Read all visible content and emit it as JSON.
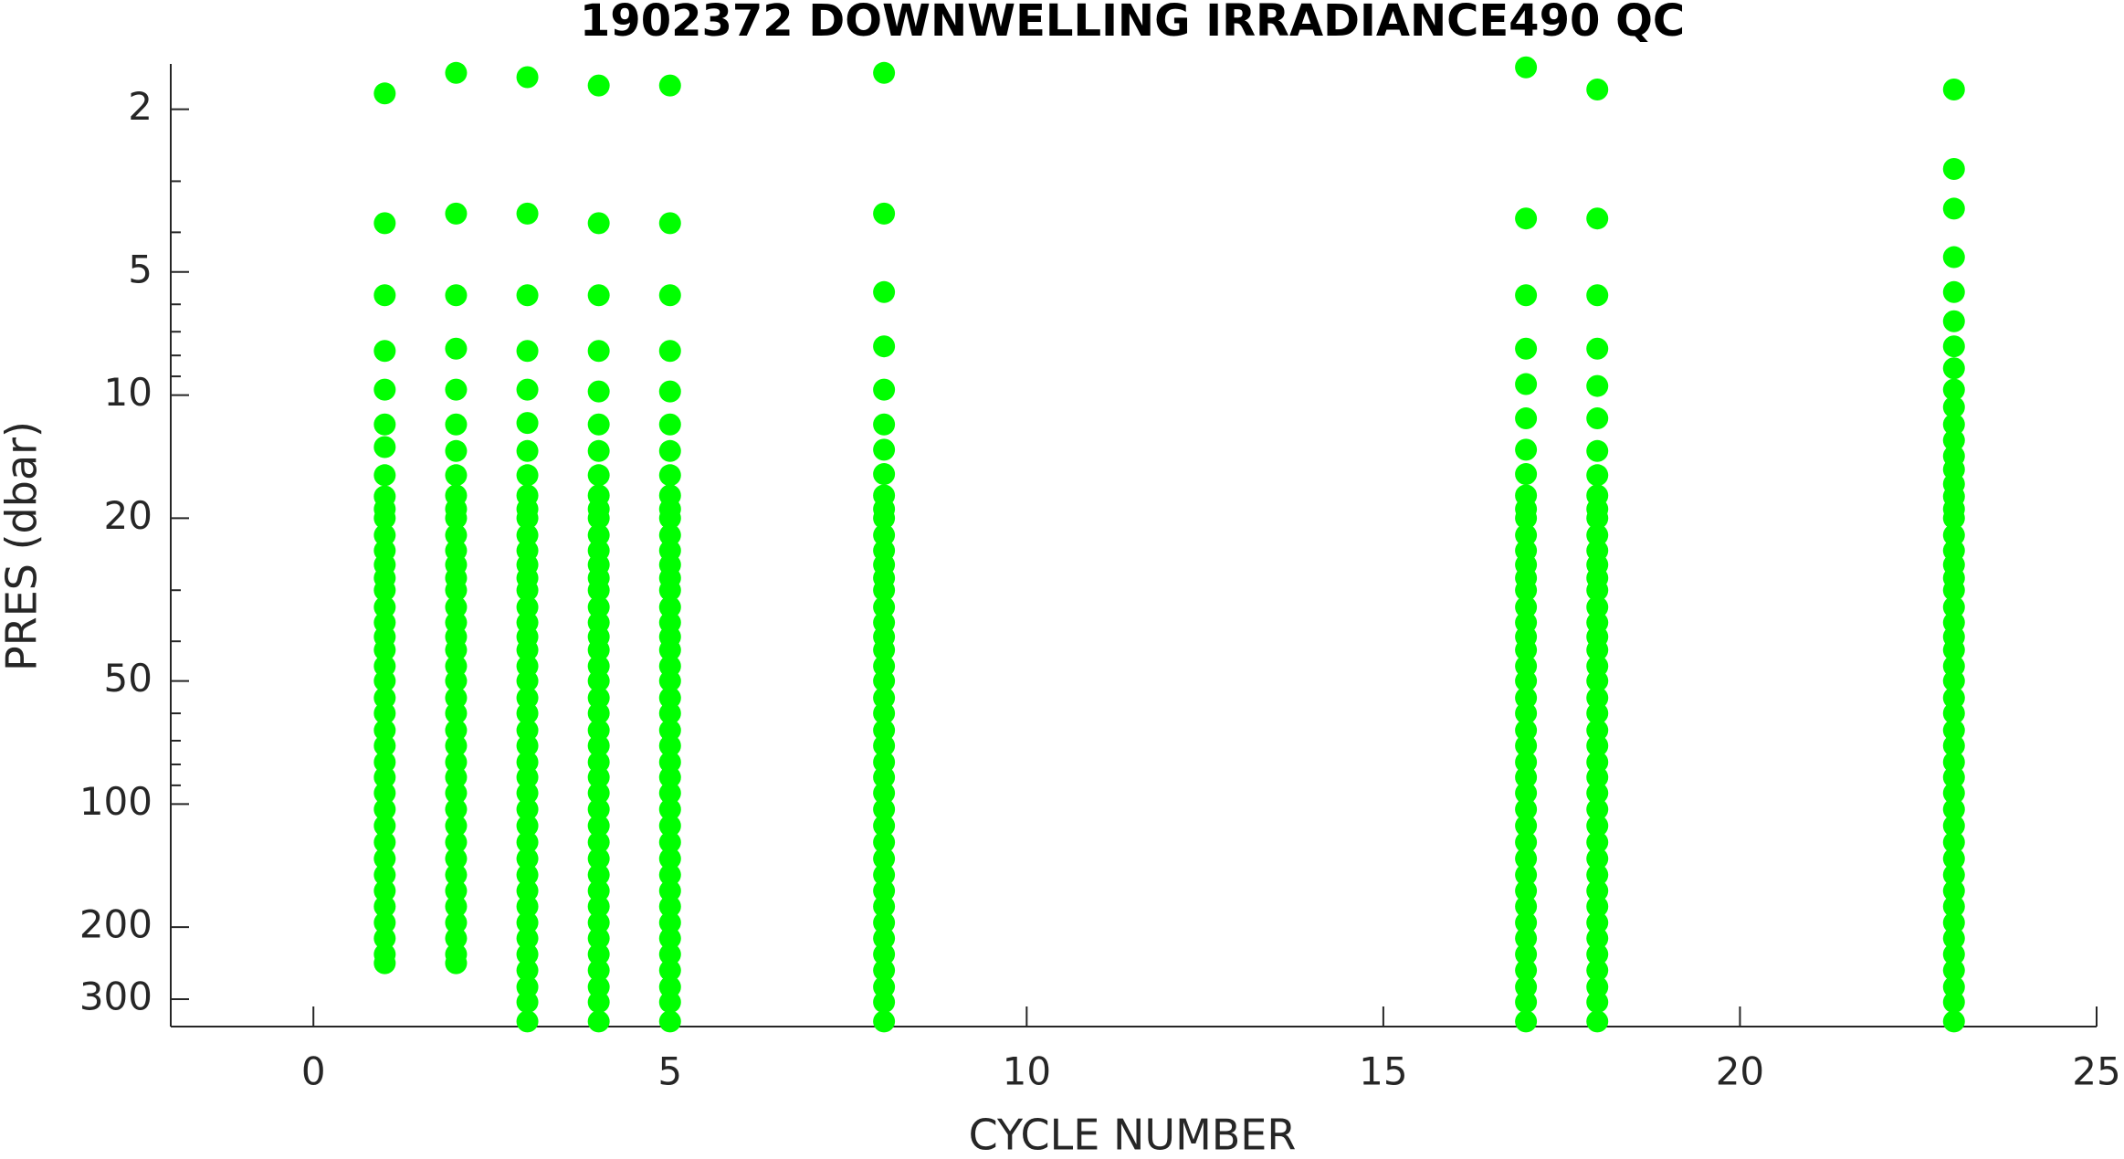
{
  "chart_data": {
    "type": "scatter",
    "title": "1902372  DOWNWELLING IRRADIANCE490 QC",
    "xlabel": "CYCLE NUMBER",
    "ylabel": "PRES (dbar)",
    "color": "#00ff00",
    "ylog": true,
    "yreverse": true,
    "xlim": [
      -2,
      25
    ],
    "xticks": [
      0,
      5,
      10,
      15,
      20,
      25
    ],
    "ylim": [
      1.55,
      350
    ],
    "yticks": [
      2,
      5,
      10,
      20,
      50,
      100,
      200,
      300
    ],
    "yminorticks": [
      3,
      4,
      6,
      7,
      8,
      9,
      30,
      40,
      60,
      70,
      80,
      90
    ],
    "columns": [
      {
        "x": 1,
        "y": [
          1.83,
          3.8,
          5.7,
          7.8,
          9.7,
          11.8,
          13.4,
          15.7,
          17.7,
          19,
          20,
          22,
          24,
          26,
          28,
          30,
          33,
          36,
          39,
          42,
          46,
          50,
          55,
          60,
          66,
          72,
          79,
          86,
          94,
          103,
          113,
          124,
          136,
          149,
          163,
          178,
          195,
          213,
          233,
          245
        ]
      },
      {
        "x": 2,
        "y": [
          1.63,
          3.6,
          5.7,
          7.7,
          9.7,
          11.8,
          13.7,
          15.7,
          17.6,
          19,
          20,
          22,
          24,
          26,
          28,
          30,
          33,
          36,
          39,
          42,
          46,
          50,
          55,
          60,
          66,
          72,
          79,
          86,
          94,
          103,
          113,
          124,
          136,
          149,
          163,
          178,
          195,
          213,
          233,
          245
        ]
      },
      {
        "x": 3,
        "y": [
          1.67,
          3.6,
          5.7,
          7.8,
          9.7,
          11.7,
          13.7,
          15.7,
          17.6,
          19,
          20,
          22,
          24,
          26,
          28,
          30,
          33,
          36,
          39,
          42,
          46,
          50,
          55,
          60,
          66,
          72,
          79,
          86,
          94,
          103,
          113,
          124,
          136,
          149,
          163,
          178,
          195,
          213,
          233,
          255,
          280,
          305,
          340
        ]
      },
      {
        "x": 4,
        "y": [
          1.75,
          3.8,
          5.7,
          7.8,
          9.8,
          11.8,
          13.7,
          15.7,
          17.6,
          19,
          20,
          22,
          24,
          26,
          28,
          30,
          33,
          36,
          39,
          42,
          46,
          50,
          55,
          60,
          66,
          72,
          79,
          86,
          94,
          103,
          113,
          124,
          136,
          149,
          163,
          178,
          195,
          213,
          233,
          255,
          280,
          305,
          340
        ]
      },
      {
        "x": 5,
        "y": [
          1.75,
          3.8,
          5.7,
          7.8,
          9.8,
          11.8,
          13.7,
          15.7,
          17.6,
          19,
          20,
          22,
          24,
          26,
          28,
          30,
          33,
          36,
          39,
          42,
          46,
          50,
          55,
          60,
          66,
          72,
          79,
          86,
          94,
          103,
          113,
          124,
          136,
          149,
          163,
          178,
          195,
          213,
          233,
          255,
          280,
          305,
          340
        ]
      },
      {
        "x": 8,
        "y": [
          1.63,
          3.6,
          5.6,
          7.6,
          9.7,
          11.8,
          13.6,
          15.6,
          17.6,
          19,
          20,
          22,
          24,
          26,
          28,
          30,
          33,
          36,
          39,
          42,
          46,
          50,
          55,
          60,
          66,
          72,
          79,
          86,
          94,
          103,
          113,
          124,
          136,
          149,
          163,
          178,
          195,
          213,
          233,
          255,
          280,
          305,
          340
        ]
      },
      {
        "x": 17,
        "y": [
          1.58,
          3.7,
          5.7,
          7.7,
          9.4,
          11.4,
          13.6,
          15.6,
          17.6,
          19,
          20,
          22,
          24,
          26,
          28,
          30,
          33,
          36,
          39,
          42,
          46,
          50,
          55,
          60,
          66,
          72,
          79,
          86,
          94,
          103,
          113,
          124,
          136,
          149,
          163,
          178,
          195,
          213,
          233,
          255,
          280,
          305,
          340
        ]
      },
      {
        "x": 18,
        "y": [
          1.79,
          3.7,
          5.7,
          7.7,
          9.5,
          11.4,
          13.7,
          15.7,
          17.6,
          19,
          20,
          22,
          24,
          26,
          28,
          30,
          33,
          36,
          39,
          42,
          46,
          50,
          55,
          60,
          66,
          72,
          79,
          86,
          94,
          103,
          113,
          124,
          136,
          149,
          163,
          178,
          195,
          213,
          233,
          255,
          280,
          305,
          340
        ]
      },
      {
        "x": 23,
        "y": [
          1.79,
          2.8,
          3.5,
          4.6,
          5.6,
          6.6,
          7.6,
          8.6,
          9.7,
          10.7,
          11.8,
          12.9,
          14.1,
          15.2,
          16.5,
          17.7,
          19,
          20,
          22,
          24,
          26,
          28,
          30,
          33,
          36,
          39,
          42,
          46,
          50,
          55,
          60,
          66,
          72,
          79,
          86,
          94,
          103,
          113,
          124,
          136,
          149,
          163,
          178,
          195,
          213,
          233,
          255,
          280,
          305,
          340
        ]
      }
    ]
  }
}
